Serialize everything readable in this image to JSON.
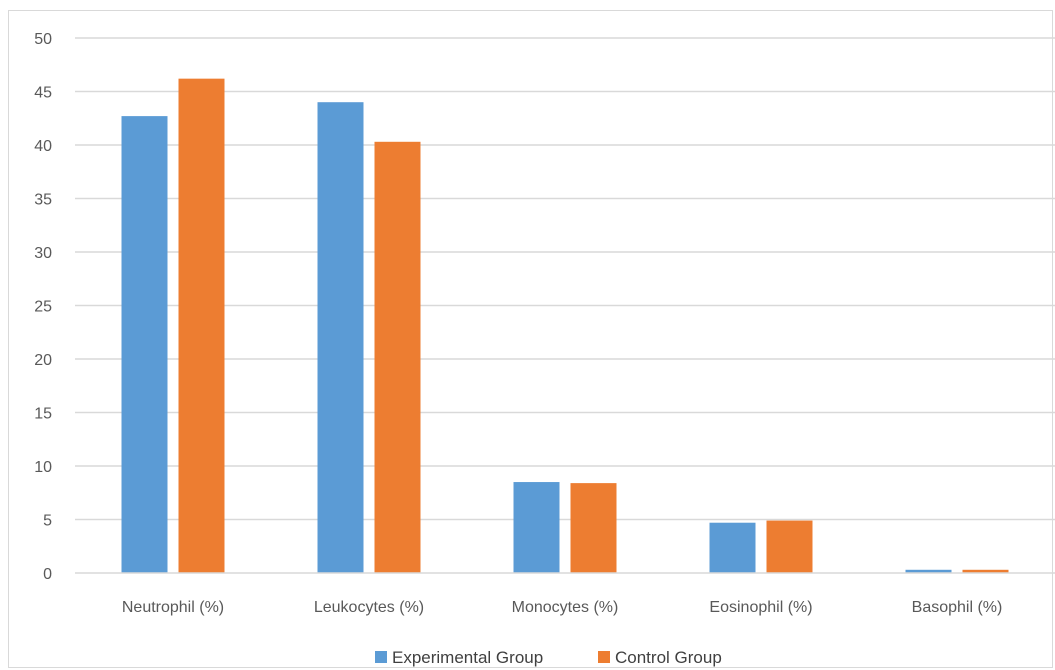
{
  "chart_data": {
    "type": "bar",
    "categories": [
      "Neutrophil (%)",
      "Leukocytes (%)",
      "Monocytes (%)",
      "Eosinophil (%)",
      "Basophil (%)"
    ],
    "series": [
      {
        "name": "Experimental Group",
        "color": "#5b9bd5",
        "values": [
          42.7,
          44.0,
          8.5,
          4.7,
          0.3
        ]
      },
      {
        "name": "Control Group",
        "color": "#ed7d31",
        "values": [
          46.2,
          40.3,
          8.4,
          4.9,
          0.3
        ]
      }
    ],
    "title": "",
    "xlabel": "",
    "ylabel": "",
    "ylim": [
      0,
      50
    ],
    "yticks": [
      0,
      5,
      10,
      15,
      20,
      25,
      30,
      35,
      40,
      45,
      50
    ],
    "grid": true,
    "legend": "bottom-center",
    "gridline_color": "#d9d9d9",
    "axis_color": "#d9d9d9"
  }
}
